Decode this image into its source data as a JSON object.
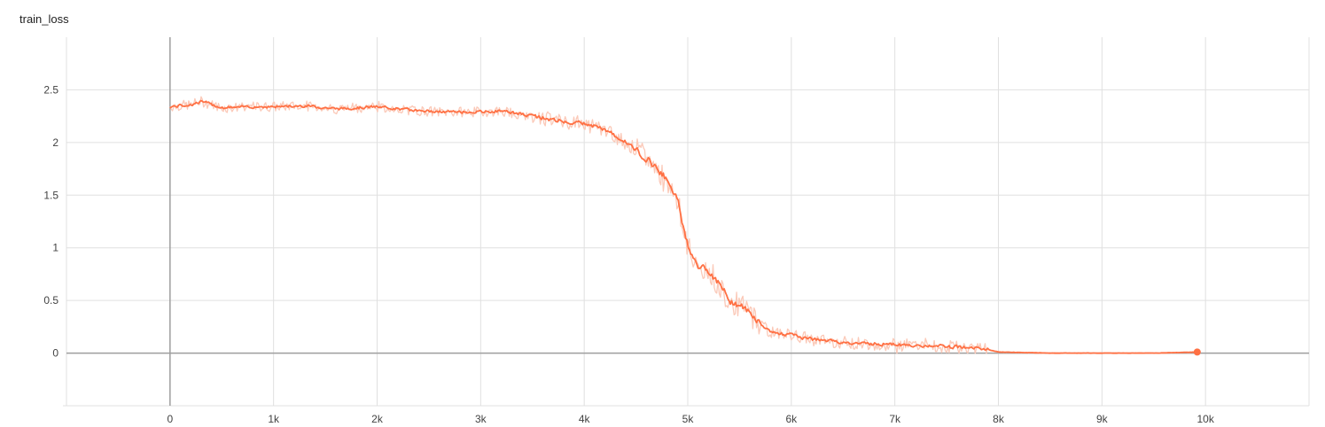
{
  "chart_data": {
    "type": "line",
    "title": "train_loss",
    "xlabel": "",
    "ylabel": "",
    "xlim": [
      -1000,
      11000
    ],
    "ylim": [
      -0.5,
      3.0
    ],
    "x_ticks": [
      0,
      1000,
      2000,
      3000,
      4000,
      5000,
      6000,
      7000,
      8000,
      9000,
      10000
    ],
    "x_tick_labels": [
      "0",
      "1k",
      "2k",
      "3k",
      "4k",
      "5k",
      "6k",
      "7k",
      "8k",
      "9k",
      "10k"
    ],
    "y_ticks": [
      0,
      0.5,
      1,
      1.5,
      2,
      2.5
    ],
    "y_tick_labels": [
      "0",
      "0.5",
      "1",
      "1.5",
      "2",
      "2.5"
    ],
    "grid": true,
    "colors": {
      "smoothed": "#ff7043",
      "raw": "#fbc9b8"
    },
    "series": [
      {
        "x": [
          0,
          200,
          300,
          500,
          800,
          1000,
          1300,
          1600,
          2000,
          2300,
          2600,
          3000,
          3200,
          3500,
          3800,
          4000,
          4200,
          4400,
          4600,
          4700,
          4800,
          4850,
          4900,
          4950,
          5000,
          5100,
          5200,
          5300,
          5400,
          5500,
          5600,
          5700,
          5800,
          6000,
          6200,
          6500,
          7000,
          7500,
          7800,
          8000,
          8500,
          9000,
          9500,
          9920
        ],
        "values": [
          2.34,
          2.36,
          2.39,
          2.33,
          2.34,
          2.34,
          2.35,
          2.32,
          2.34,
          2.31,
          2.29,
          2.29,
          2.3,
          2.25,
          2.2,
          2.18,
          2.12,
          2.0,
          1.85,
          1.75,
          1.65,
          1.55,
          1.45,
          1.2,
          1.0,
          0.82,
          0.78,
          0.65,
          0.5,
          0.45,
          0.38,
          0.28,
          0.2,
          0.17,
          0.13,
          0.1,
          0.08,
          0.06,
          0.05,
          0.01,
          0.0,
          0.0,
          0.0,
          0.01
        ]
      }
    ]
  }
}
